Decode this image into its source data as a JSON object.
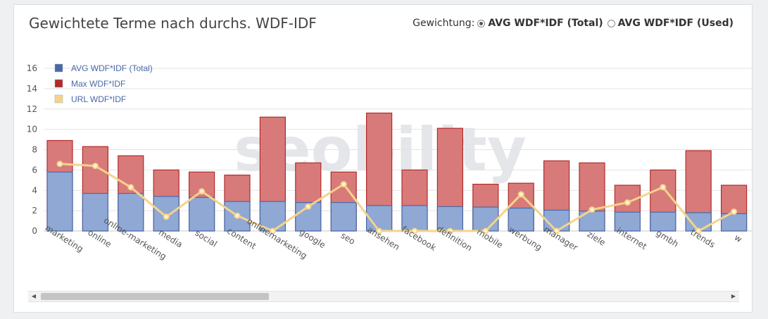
{
  "header": {
    "title": "Gewichtete Terme nach durchs. WDF-IDF",
    "weighting_label": "Gewichtung:",
    "options": [
      {
        "label": "AVG WDF*IDF (Total)",
        "selected": true
      },
      {
        "label": "AVG WDF*IDF (Used)",
        "selected": false
      }
    ]
  },
  "watermark": "seobility",
  "colors": {
    "avg": "#8fa8d4",
    "avg_border": "#4a68a8",
    "max": "#d87a7a",
    "max_border": "#b32b2b",
    "url": "#f5d38a",
    "url_point": "#f5d38a"
  },
  "chart_data": {
    "type": "bar",
    "stacked": true,
    "categories": [
      "marketing",
      "online",
      "online-marketing",
      "media",
      "social",
      "content",
      "onlinemarketing",
      "google",
      "seo",
      "ansehen",
      "facebook",
      "definition",
      "mobile",
      "werbung",
      "manager",
      "ziele",
      "internet",
      "gmbh",
      "trends",
      "w"
    ],
    "series": [
      {
        "name": "AVG WDF*IDF (Total)",
        "type": "bar",
        "values": [
          5.8,
          3.7,
          3.7,
          3.4,
          3.3,
          2.9,
          2.9,
          2.8,
          2.8,
          2.5,
          2.5,
          2.4,
          2.35,
          2.25,
          2.05,
          1.95,
          1.85,
          1.85,
          1.8,
          1.7
        ]
      },
      {
        "name": "Max WDF*IDF",
        "type": "bar",
        "values": [
          8.9,
          8.3,
          7.4,
          6.0,
          5.8,
          5.5,
          11.2,
          6.7,
          5.8,
          11.6,
          6.0,
          10.1,
          4.6,
          4.7,
          6.9,
          6.7,
          4.5,
          6.0,
          7.9,
          4.5
        ]
      },
      {
        "name": "URL WDF*IDF",
        "type": "line",
        "values": [
          6.6,
          6.4,
          4.3,
          1.4,
          3.9,
          1.5,
          0.0,
          2.4,
          4.6,
          0.0,
          0.0,
          0.0,
          0.0,
          3.6,
          0.0,
          2.1,
          2.8,
          4.3,
          0.0,
          1.9
        ]
      }
    ],
    "yticks": [
      "0",
      "2",
      "4",
      "6",
      "8",
      "10",
      "12",
      "14",
      "16"
    ],
    "ylim": [
      0,
      16
    ],
    "grid": true,
    "legend": "top-left"
  },
  "scrollbar": {
    "left_arrow": "◀",
    "right_arrow": "▶"
  }
}
